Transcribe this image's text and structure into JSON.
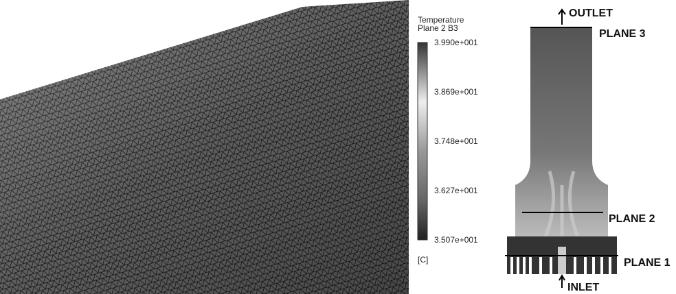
{
  "legend": {
    "title": "Temperature",
    "subtitle": "Plane 2 B3",
    "ticks": [
      "3.990e+001",
      "3.869e+001",
      "3.748e+001",
      "3.627e+001",
      "3.507e+001"
    ],
    "unit": "[C]"
  },
  "labels": {
    "outlet": "OUTLET",
    "plane3": "PLANE 3",
    "plane2": "PLANE 2",
    "plane1": "PLANE 1",
    "inlet": "INLET"
  }
}
